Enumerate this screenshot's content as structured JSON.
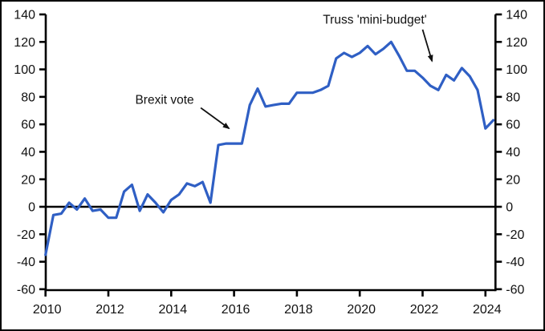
{
  "chart_data": {
    "type": "line",
    "title": "",
    "xlabel": "",
    "ylabel": "",
    "grid": false,
    "legend": "none",
    "background_color": "#ffffff",
    "axis_color": "#000000",
    "line_color": "#2f5fc4",
    "annotation_color": "#111111",
    "xlim": [
      2010,
      2024.35
    ],
    "ylim": [
      -60,
      140
    ],
    "x_ticks": [
      2010,
      2012,
      2014,
      2016,
      2018,
      2020,
      2022,
      2024
    ],
    "y_ticks": [
      -60,
      -40,
      -20,
      0,
      20,
      40,
      60,
      80,
      100,
      120,
      140
    ],
    "y_axis_sides": [
      "left",
      "right"
    ],
    "zero_line": 0,
    "x": [
      2010.0,
      2010.25,
      2010.5,
      2010.75,
      2011.0,
      2011.25,
      2011.5,
      2011.75,
      2012.0,
      2012.25,
      2012.5,
      2012.75,
      2013.0,
      2013.25,
      2013.5,
      2013.75,
      2014.0,
      2014.25,
      2014.5,
      2014.75,
      2015.0,
      2015.25,
      2015.5,
      2015.75,
      2016.0,
      2016.25,
      2016.5,
      2016.75,
      2017.0,
      2017.25,
      2017.5,
      2017.75,
      2018.0,
      2018.25,
      2018.5,
      2018.75,
      2019.0,
      2019.25,
      2019.5,
      2019.75,
      2020.0,
      2020.25,
      2020.5,
      2020.75,
      2021.0,
      2021.25,
      2021.5,
      2021.75,
      2022.0,
      2022.25,
      2022.5,
      2022.75,
      2023.0,
      2023.25,
      2023.5,
      2023.75,
      2024.0,
      2024.25
    ],
    "values": [
      -35,
      -6,
      -5,
      3,
      -2,
      6,
      -3,
      -2,
      -8,
      -8,
      11,
      16,
      -3,
      9,
      3,
      -4,
      5,
      9,
      17,
      15,
      18,
      3,
      45,
      46,
      46,
      46,
      74,
      86,
      73,
      74,
      75,
      75,
      83,
      83,
      83,
      85,
      88,
      108,
      112,
      109,
      112,
      117,
      111,
      115,
      120,
      110,
      99,
      99,
      94,
      88,
      85,
      96,
      92,
      101,
      95,
      85,
      57,
      63
    ],
    "annotations": [
      {
        "id": "brexit-vote",
        "text": "Brexit vote",
        "text_x": 2013.79,
        "text_y": 78,
        "arrow": {
          "x1": 2014.94,
          "y1": 72,
          "x2": 2015.84,
          "y2": 57
        }
      },
      {
        "id": "truss-mini-budget",
        "text": "Truss 'mini-budget'",
        "text_x": 2020.48,
        "text_y": 136.5,
        "arrow": {
          "x1": 2022.0,
          "y1": 129,
          "x2": 2022.3,
          "y2": 106
        }
      }
    ]
  }
}
